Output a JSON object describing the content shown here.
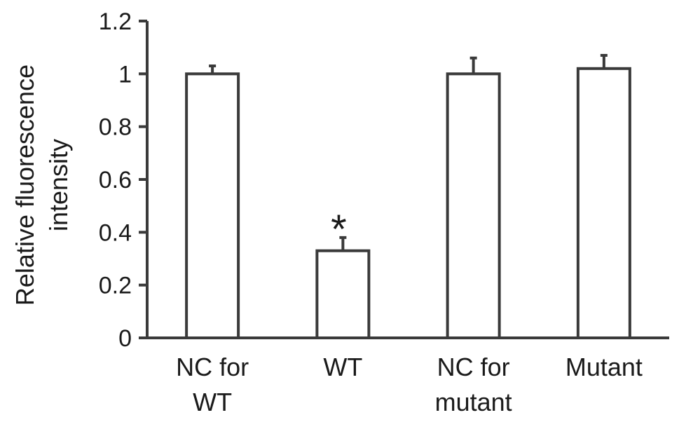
{
  "chart_data": {
    "type": "bar",
    "categories": [
      [
        "NC for",
        "WT"
      ],
      [
        "WT"
      ],
      [
        "NC for",
        "mutant"
      ],
      [
        "Mutant"
      ]
    ],
    "values": [
      1.0,
      0.33,
      1.0,
      1.02
    ],
    "errors": [
      0.03,
      0.05,
      0.06,
      0.05
    ],
    "annotations": [
      "",
      "*",
      "",
      ""
    ],
    "ylabel": [
      "Relative fluorescence",
      "intensity"
    ],
    "ylim": [
      0,
      1.2
    ],
    "yticks": [
      0,
      0.2,
      0.4,
      0.6,
      0.8,
      1,
      1.2
    ],
    "ytick_labels": [
      "0",
      "0.2",
      "0.4",
      "0.6",
      "0.8",
      "1",
      "1.2"
    ],
    "grid": false,
    "legend": "none",
    "colors": {
      "bar_fill": "#ffffff",
      "bar_stroke": "#3a3a3a",
      "axis": "#3a3a3a"
    }
  }
}
